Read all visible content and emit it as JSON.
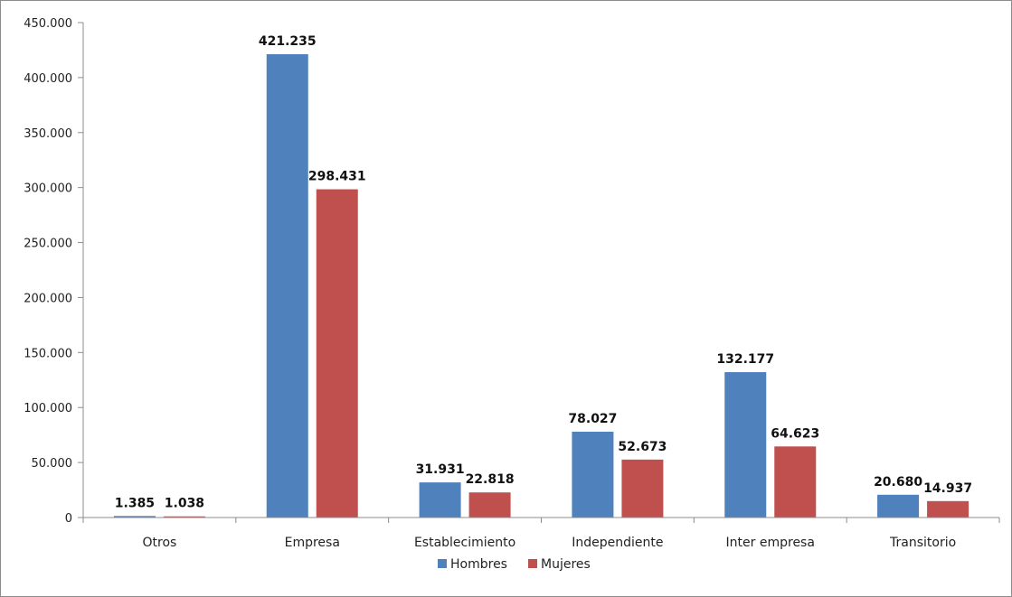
{
  "chart_data": {
    "type": "bar",
    "categories": [
      "Otros",
      "Empresa",
      "Establecimiento",
      "Independiente",
      "Inter empresa",
      "Transitorio"
    ],
    "series": [
      {
        "name": "Hombres",
        "color": "#4f81bd",
        "values": [
          1385,
          421235,
          31931,
          78027,
          132177,
          20680
        ],
        "labels": [
          "1.385",
          "421.235",
          "31.931",
          "78.027",
          "132.177",
          "20.680"
        ]
      },
      {
        "name": "Mujeres",
        "color": "#c0504d",
        "values": [
          1038,
          298431,
          22818,
          52673,
          64623,
          14937
        ],
        "labels": [
          "1.038",
          "298.431",
          "22.818",
          "52.673",
          "64.623",
          "14.937"
        ]
      }
    ],
    "yticks": [
      "0",
      "50.000",
      "100.000",
      "150.000",
      "200.000",
      "250.000",
      "300.000",
      "350.000",
      "400.000",
      "450.000"
    ],
    "ylim": [
      0,
      450000
    ],
    "grid": false,
    "legend": "bottom-center"
  }
}
